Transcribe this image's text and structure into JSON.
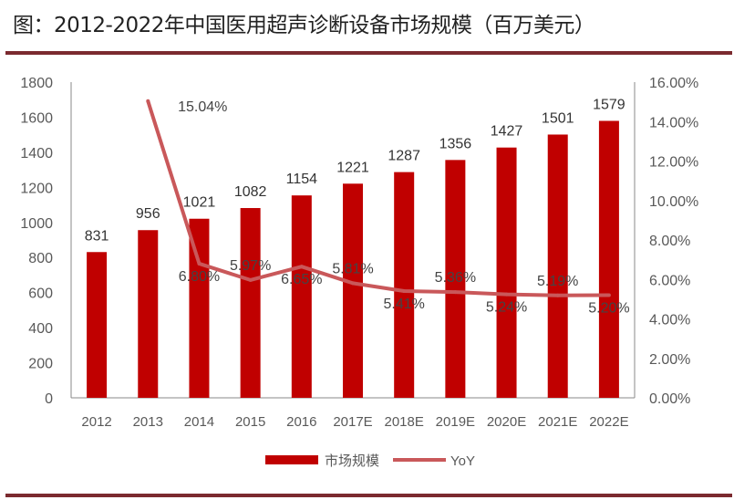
{
  "title": "图：2012-2022年中国医用超声诊断设备市场规模（百万美元）",
  "colors": {
    "bar": "#c00000",
    "line": "#c9585a",
    "rule": "#7b2a2f",
    "text": "#595959"
  },
  "chart_data": {
    "type": "bar+line",
    "categories": [
      "2012",
      "2013",
      "2014",
      "2015",
      "2016",
      "2017E",
      "2018E",
      "2019E",
      "2020E",
      "2021E",
      "2022E"
    ],
    "series": [
      {
        "name": "市场规模",
        "type": "bar",
        "axis": "left",
        "values": [
          831,
          956,
          1021,
          1082,
          1154,
          1221,
          1287,
          1356,
          1427,
          1501,
          1579
        ],
        "labels": [
          "831",
          "956",
          "1021",
          "1082",
          "1154",
          "1221",
          "1287",
          "1356",
          "1427",
          "1501",
          "1579"
        ]
      },
      {
        "name": "YoY",
        "type": "line",
        "axis": "right",
        "values": [
          null,
          15.04,
          6.8,
          5.97,
          6.65,
          5.81,
          5.41,
          5.36,
          5.24,
          5.19,
          5.2
        ],
        "labels": [
          "",
          "15.04%",
          "6.80%",
          "5.97%",
          "6.65%",
          "5.81%",
          "5.41%",
          "5.36%",
          "5.24%",
          "5.19%",
          "5.20%"
        ]
      }
    ],
    "left_axis": {
      "range": [
        0,
        1800
      ],
      "ticks": [
        "0",
        "200",
        "400",
        "600",
        "800",
        "1000",
        "1200",
        "1400",
        "1600",
        "1800"
      ]
    },
    "right_axis": {
      "range": [
        0,
        16
      ],
      "ticks": [
        "0.00%",
        "2.00%",
        "4.00%",
        "6.00%",
        "8.00%",
        "10.00%",
        "12.00%",
        "14.00%",
        "16.00%"
      ]
    },
    "grid": false,
    "legend": "bottom"
  }
}
